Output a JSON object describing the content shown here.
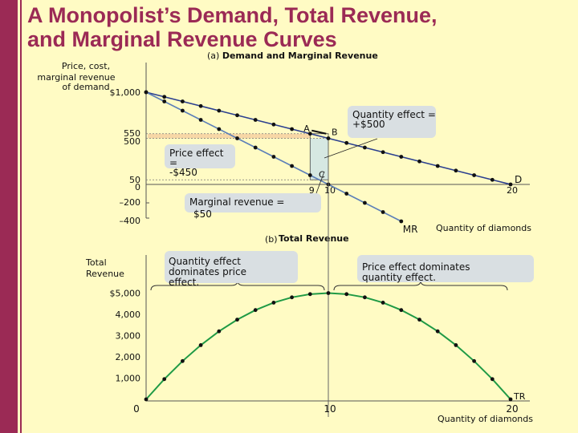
{
  "title_line1": "A Monopolist’s Demand, Total Revenue,",
  "title_line2": "and Marginal Revenue Curves",
  "colors": {
    "accent": "#9B2A55",
    "background": "#FFFBC4",
    "demand": "#2B3F8F",
    "marginal_revenue": "#5C7FB8",
    "total_revenue": "#1F9A45",
    "callout": "#D9DFE2",
    "price_effect_area": "#F3C79A",
    "quantity_effect_area": "#D6E8E2"
  },
  "chart_data": [
    {
      "type": "line",
      "panel_label": "(a)",
      "title": "Demand and Marginal Revenue",
      "ylabel": "Price, cost, marginal revenue of demand",
      "xlabel": "Quantity of diamonds",
      "x": [
        0,
        1,
        2,
        3,
        4,
        5,
        6,
        7,
        8,
        9,
        10,
        11,
        12,
        13,
        14,
        15,
        16,
        17,
        18,
        19,
        20
      ],
      "series": [
        {
          "name": "D",
          "values": [
            1000,
            950,
            900,
            850,
            800,
            750,
            700,
            650,
            600,
            550,
            500,
            450,
            400,
            350,
            300,
            250,
            200,
            150,
            100,
            50,
            0
          ]
        },
        {
          "name": "MR",
          "x": [
            0,
            1,
            2,
            3,
            4,
            5,
            6,
            7,
            8,
            9,
            10,
            11,
            12,
            13,
            14
          ],
          "values": [
            1000,
            900,
            800,
            700,
            600,
            500,
            400,
            300,
            200,
            100,
            0,
            -100,
            -200,
            -300,
            -400
          ]
        }
      ],
      "y_tick_labels": [
        "$1,000",
        "550",
        "500",
        "50",
        "0",
        "–200",
        "–400"
      ],
      "y_tick_values": [
        1000,
        550,
        500,
        50,
        0,
        -200,
        -400
      ],
      "x_tick_labels": [
        "9",
        "10",
        "20"
      ],
      "x_tick_values": [
        9,
        10,
        20
      ],
      "ylim": [
        -400,
        1100
      ],
      "xlim": [
        0,
        21
      ],
      "points": [
        {
          "label": "A",
          "x": 9,
          "y": 550
        },
        {
          "label": "B",
          "x": 10,
          "y": 500
        },
        {
          "label": "C",
          "x": 10,
          "y": 50
        }
      ],
      "annotations": {
        "quantity_effect": [
          "Quantity effect =",
          "+$500"
        ],
        "price_effect": [
          "Price effect",
          "=",
          "-$450"
        ],
        "marginal_revenue": [
          "Marginal revenue =",
          "$50"
        ]
      }
    },
    {
      "type": "line",
      "panel_label": "(b)",
      "title": "Total Revenue",
      "ylabel": "Total Revenue",
      "xlabel": "Quantity of diamonds",
      "x": [
        0,
        1,
        2,
        3,
        4,
        5,
        6,
        7,
        8,
        9,
        10,
        11,
        12,
        13,
        14,
        15,
        16,
        17,
        18,
        19,
        20
      ],
      "series": [
        {
          "name": "TR",
          "values": [
            0,
            950,
            1800,
            2550,
            3200,
            3750,
            4200,
            4550,
            4800,
            4950,
            5000,
            4950,
            4800,
            4550,
            4200,
            3750,
            3200,
            2550,
            1800,
            950,
            0
          ]
        }
      ],
      "y_tick_labels": [
        "$5,000",
        "4,000",
        "3,000",
        "2,000",
        "1,000"
      ],
      "y_tick_values": [
        5000,
        4000,
        3000,
        2000,
        1000
      ],
      "x_tick_labels": [
        "0",
        "10",
        "20"
      ],
      "x_tick_values": [
        0,
        10,
        20
      ],
      "ylim": [
        0,
        6300
      ],
      "xlim": [
        0,
        21
      ],
      "annotations": {
        "left": [
          "Quantity effect",
          "dominates price",
          "effect."
        ],
        "right": [
          "Price effect dominates",
          "quantity effect."
        ]
      }
    }
  ]
}
